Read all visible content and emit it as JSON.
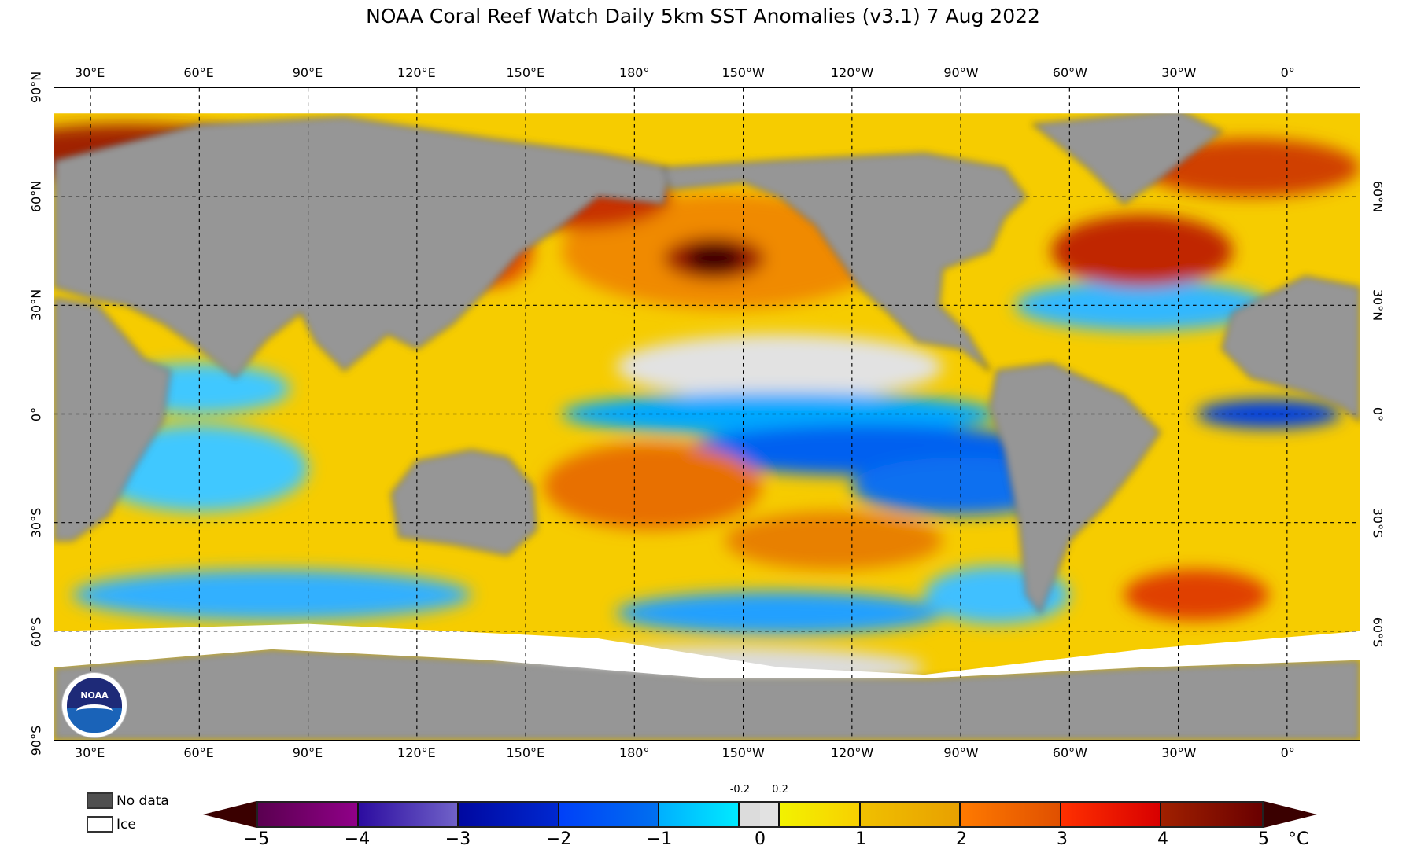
{
  "title": "NOAA Coral Reef Watch Daily 5km SST Anomalies  (v3.1)   7 Aug 2022",
  "lon_labels": [
    "30°E",
    "60°E",
    "90°E",
    "120°E",
    "150°E",
    "180°",
    "150°W",
    "120°W",
    "90°W",
    "60°W",
    "30°W",
    "0°"
  ],
  "lat_labels": [
    "90°N",
    "60°N",
    "30°N",
    "0°",
    "30°S",
    "60°S",
    "90°S"
  ],
  "lat_labels_right": [
    "60°N",
    "30°N",
    "0°",
    "30°S",
    "60°S"
  ],
  "legend": {
    "no_data": "No data",
    "ice": "Ice"
  },
  "colorbar": {
    "unit": "°C",
    "ticks": [
      "−5",
      "−4",
      "−3",
      "−2",
      "−1",
      "0",
      "1",
      "2",
      "3",
      "4",
      "5"
    ],
    "small_ticks": [
      "-0.2",
      "0.2"
    ],
    "segments": [
      {
        "from": -5,
        "to": -4,
        "c1": "#5a0050",
        "c2": "#900088"
      },
      {
        "from": -4,
        "to": -3,
        "c1": "#2c0ca0",
        "c2": "#7062c8"
      },
      {
        "from": -3,
        "to": -2,
        "c1": "#0008a0",
        "c2": "#0028d0"
      },
      {
        "from": -2,
        "to": -1,
        "c1": "#0040f8",
        "c2": "#0070f0"
      },
      {
        "from": -1,
        "to": -0.2,
        "c1": "#00b0ff",
        "c2": "#00eaff"
      },
      {
        "from": -0.2,
        "to": 0,
        "c1": "#dcdcdc",
        "c2": "#dcdcdc"
      },
      {
        "from": 0,
        "to": 0.2,
        "c1": "#e2e2e2",
        "c2": "#e2e2e2"
      },
      {
        "from": 0.2,
        "to": 1,
        "c1": "#f2f200",
        "c2": "#f8d000"
      },
      {
        "from": 1,
        "to": 2,
        "c1": "#f0c000",
        "c2": "#e8a000"
      },
      {
        "from": 2,
        "to": 3,
        "c1": "#ff7a00",
        "c2": "#e05000"
      },
      {
        "from": 3,
        "to": 4,
        "c1": "#ff3000",
        "c2": "#d80000"
      },
      {
        "from": 4,
        "to": 5,
        "c1": "#a02000",
        "c2": "#6a0000"
      }
    ]
  },
  "colors": {
    "land": "#969696",
    "no_data": "#505050",
    "ice": "#ffffff",
    "ocean_base": "#f6cc00"
  },
  "logo_text": "NOAA"
}
